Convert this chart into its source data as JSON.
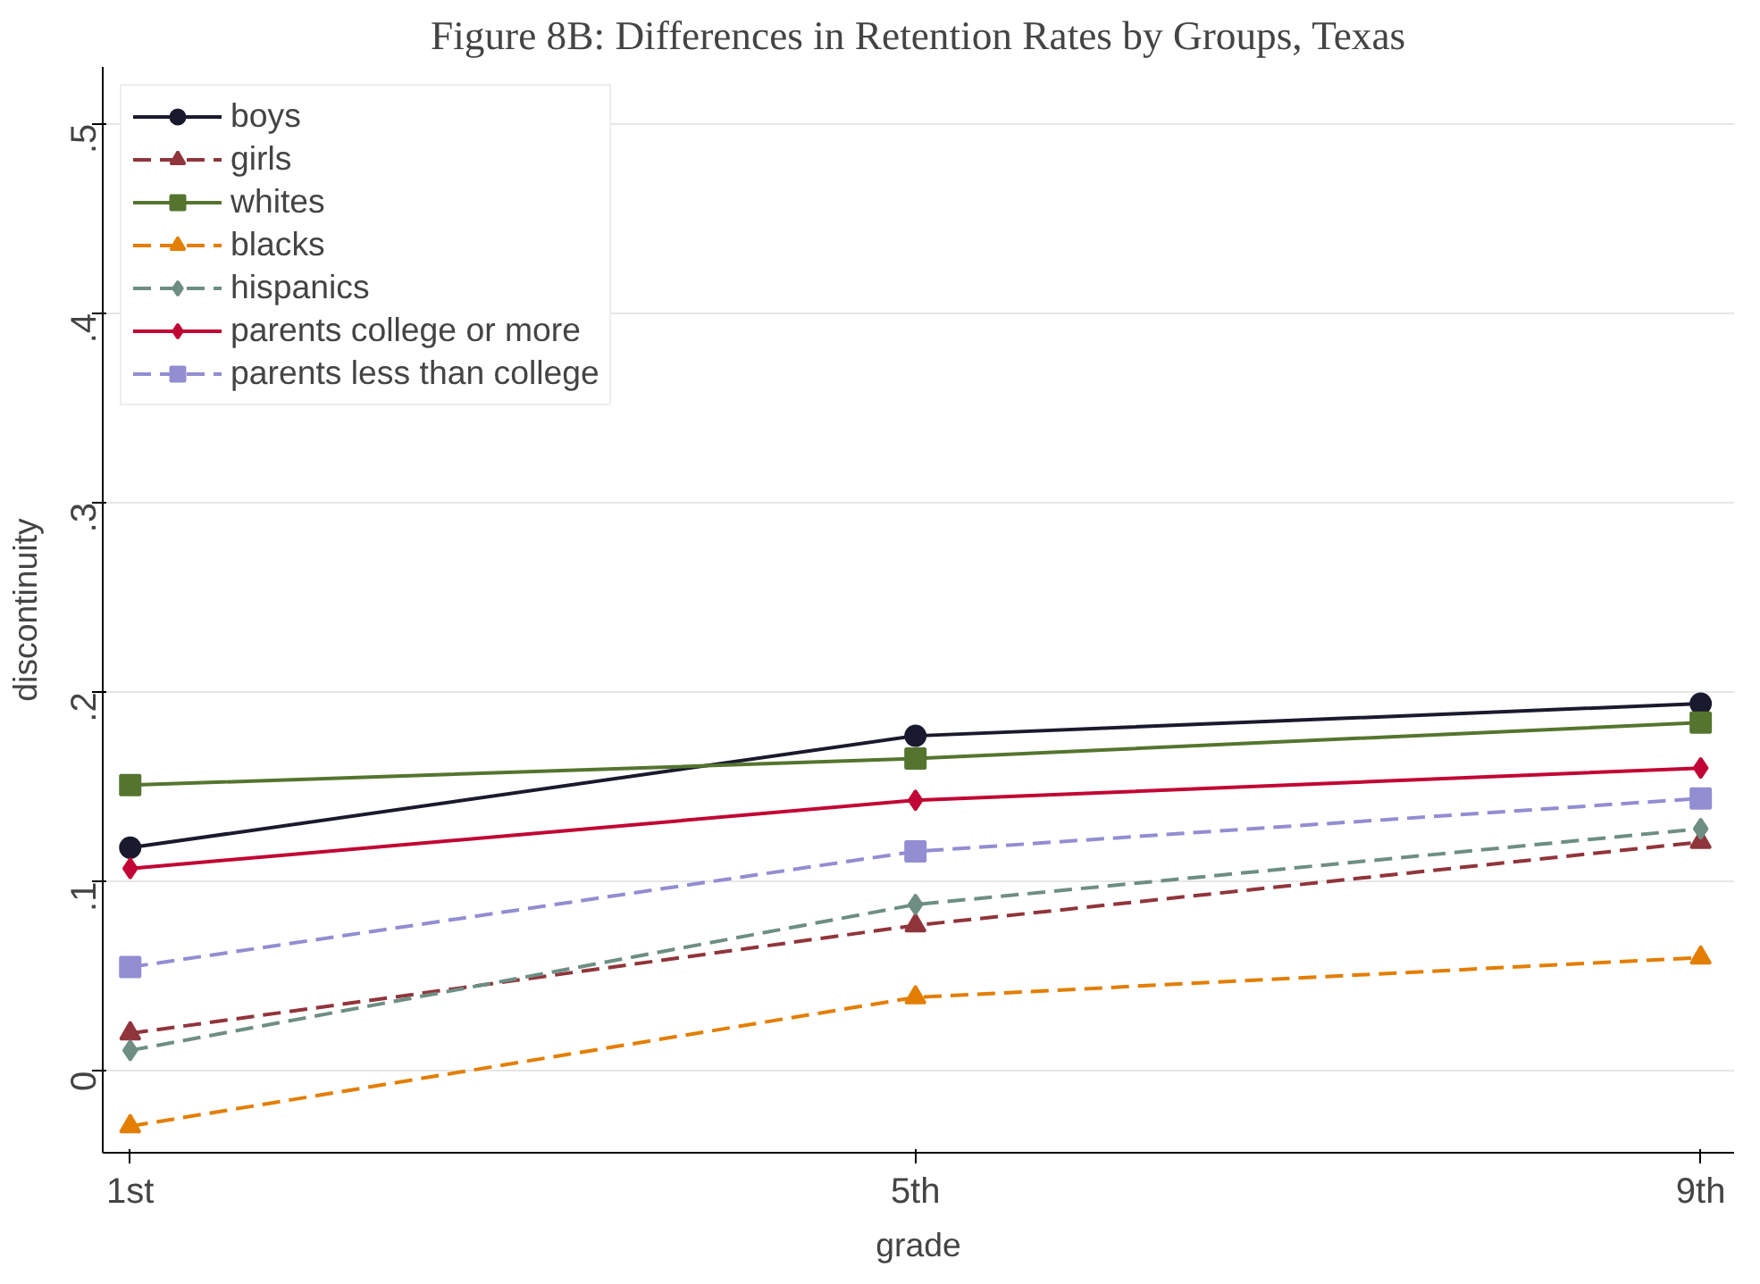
{
  "chart_data": {
    "type": "line",
    "title": "Figure 8B: Differences in Retention Rates by Groups, Texas",
    "xlabel": "grade",
    "ylabel": "discontinuity",
    "x": [
      1,
      5,
      9
    ],
    "xlim": [
      0.86,
      9.17
    ],
    "xticks": [
      {
        "value": 1,
        "label": "1st"
      },
      {
        "value": 5,
        "label": "5th"
      },
      {
        "value": 9,
        "label": "9th"
      }
    ],
    "ylim": [
      -0.043,
      0.53
    ],
    "yticks": [
      {
        "value": 0,
        "label": "0"
      },
      {
        "value": 0.1,
        "label": ".1"
      },
      {
        "value": 0.2,
        "label": ".2"
      },
      {
        "value": 0.3,
        "label": ".3"
      },
      {
        "value": 0.4,
        "label": ".4"
      },
      {
        "value": 0.5,
        "label": ".5"
      }
    ],
    "grid": "y",
    "legend": "top left",
    "series": [
      {
        "name": "boys",
        "color": "#1a1a2e",
        "marker": "circle",
        "line_style": "solid",
        "values": [
          0.118,
          0.177,
          0.194
        ]
      },
      {
        "name": "girls",
        "color": "#90353b",
        "marker": "triangle",
        "line_style": "dashed",
        "values": [
          0.02,
          0.077,
          0.121
        ]
      },
      {
        "name": "whites",
        "color": "#55752f",
        "marker": "square",
        "line_style": "solid",
        "values": [
          0.151,
          0.165,
          0.184
        ]
      },
      {
        "name": "blacks",
        "color": "#e37e00",
        "marker": "triangle",
        "line_style": "dashed",
        "values": [
          -0.029,
          0.039,
          0.06
        ]
      },
      {
        "name": "hispanics",
        "color": "#6e8e84",
        "marker": "diamond",
        "line_style": "dashed",
        "values": [
          0.011,
          0.088,
          0.128
        ]
      },
      {
        "name": "parents college or more",
        "color": "#c10534",
        "marker": "diamond",
        "line_style": "solid",
        "values": [
          0.107,
          0.143,
          0.16
        ]
      },
      {
        "name": "parents less than college",
        "color": "#938dd2",
        "marker": "square",
        "line_style": "dashed",
        "values": [
          0.055,
          0.116,
          0.144
        ]
      }
    ]
  }
}
